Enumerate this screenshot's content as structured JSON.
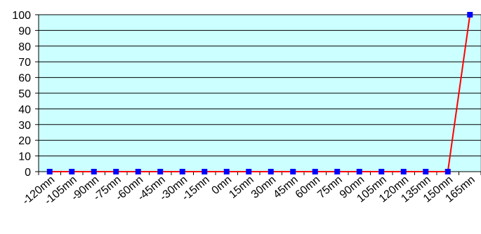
{
  "chart_data": {
    "type": "line",
    "title": "",
    "xlabel": "",
    "ylabel": "",
    "categories": [
      "-120mn",
      "-105mn",
      "-90mn",
      "-75mn",
      "-60mn",
      "-45mn",
      "-30mn",
      "-15mn",
      "0mn",
      "15mn",
      "30mn",
      "45mn",
      "60mn",
      "75mn",
      "90mn",
      "105mn",
      "120mn",
      "135mn",
      "150mn",
      "165mn"
    ],
    "series": [
      {
        "values": [
          0,
          0,
          0,
          0,
          0,
          0,
          0,
          0,
          0,
          0,
          0,
          0,
          0,
          0,
          0,
          0,
          0,
          0,
          0,
          100
        ],
        "line_color": "#ff0000",
        "marker_color": "#0000ff",
        "marker": "square"
      }
    ],
    "ylim": [
      0,
      100
    ],
    "yticks": [
      "0",
      "10",
      "20",
      "30",
      "40",
      "50",
      "60",
      "70",
      "80",
      "90",
      "100"
    ],
    "grid": true,
    "legend": "none",
    "plot_background": "#ccffff",
    "gridline_color": "#000000"
  }
}
